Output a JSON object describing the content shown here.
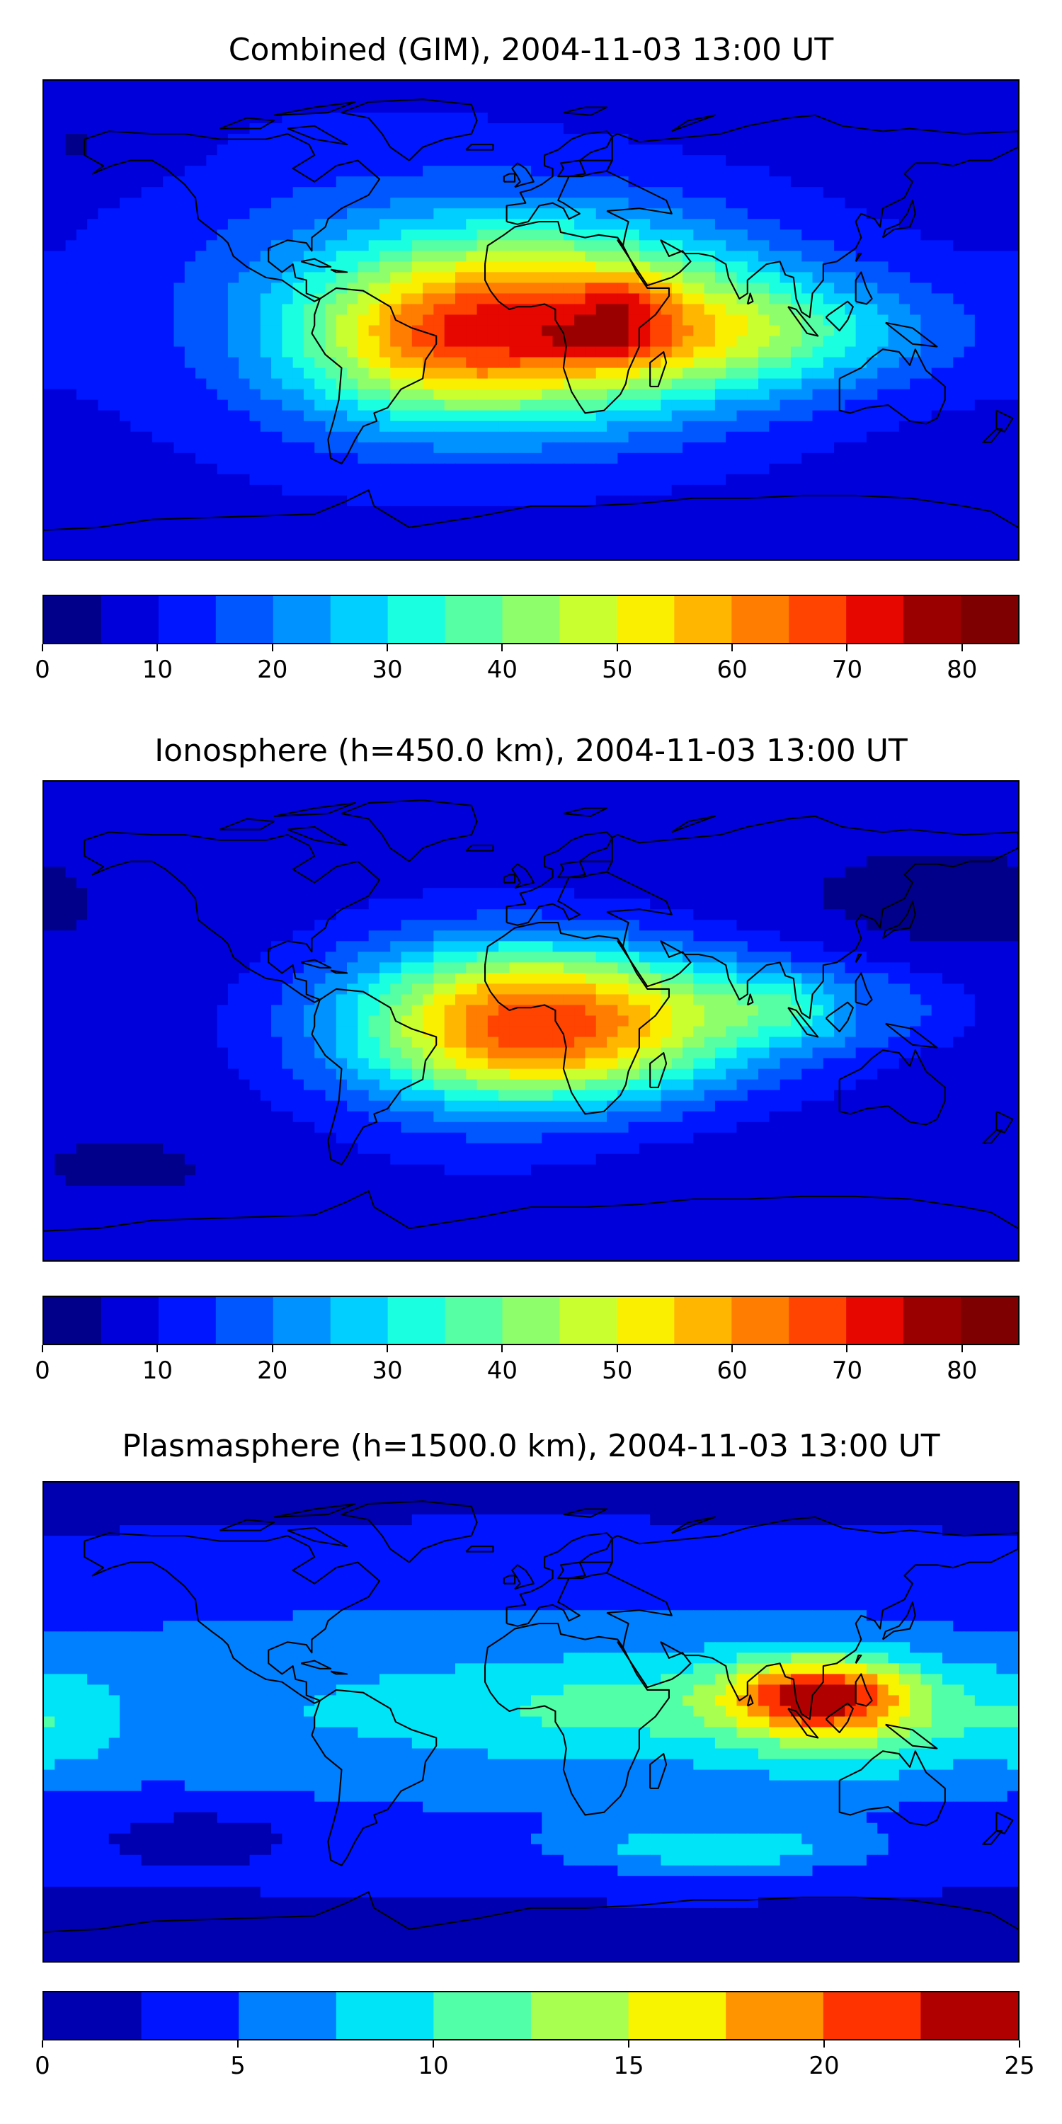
{
  "chart_data": [
    {
      "type": "heatmap",
      "title": "Combined (GIM), 2004-11-03 13:00 UT",
      "colorbar": {
        "ticks": [
          0,
          10,
          20,
          30,
          40,
          50,
          60,
          70,
          80
        ],
        "levels": [
          0,
          5,
          10,
          15,
          20,
          25,
          30,
          35,
          40,
          45,
          50,
          55,
          60,
          65,
          70,
          75,
          80,
          85
        ],
        "colors": [
          "#00008a",
          "#0000db",
          "#0016ff",
          "#0057ff",
          "#0093ff",
          "#00cfff",
          "#1affe0",
          "#56ffa4",
          "#8eff6b",
          "#c9ff2f",
          "#fbef00",
          "#ffb600",
          "#ff7d00",
          "#ff4300",
          "#e60700",
          "#9a0000",
          "#7f0000"
        ]
      },
      "field": {
        "background": 8,
        "blobs": [
          {
            "lon": 10,
            "lat": 0,
            "amp": 50,
            "slon": 55,
            "slat": 26
          },
          {
            "lon": 35,
            "lat": 8,
            "amp": 12,
            "slon": 12,
            "slat": 6
          },
          {
            "lon": 30,
            "lat": -8,
            "amp": 12,
            "slon": 16,
            "slat": 6
          },
          {
            "lon": 90,
            "lat": -5,
            "amp": 20,
            "slon": 45,
            "slat": 15
          },
          {
            "lon": -40,
            "lat": -10,
            "amp": 20,
            "slon": 35,
            "slat": 20
          },
          {
            "lon": -70,
            "lat": 10,
            "amp": 8,
            "slon": 60,
            "slat": 40
          },
          {
            "lon": -165,
            "lat": 65,
            "amp": -4,
            "slon": 25,
            "slat": 10
          }
        ]
      }
    },
    {
      "type": "heatmap",
      "title": "Ionosphere  (h=450.0 km), 2004-11-03 13:00 UT",
      "colorbar": {
        "ticks": [
          0,
          10,
          20,
          30,
          40,
          50,
          60,
          70,
          80
        ],
        "levels": [
          0,
          5,
          10,
          15,
          20,
          25,
          30,
          35,
          40,
          45,
          50,
          55,
          60,
          65,
          70,
          75,
          80,
          85
        ],
        "colors": [
          "#00008a",
          "#0000db",
          "#0016ff",
          "#0057ff",
          "#0093ff",
          "#00cfff",
          "#1affe0",
          "#56ffa4",
          "#8eff6b",
          "#c9ff2f",
          "#fbef00",
          "#ffb600",
          "#ff7d00",
          "#ff4300",
          "#e60700",
          "#9a0000",
          "#7f0000"
        ]
      },
      "field": {
        "background": 7,
        "blobs": [
          {
            "lon": 10,
            "lat": 10,
            "amp": 35,
            "slon": 50,
            "slat": 15
          },
          {
            "lon": 10,
            "lat": -12,
            "amp": 35,
            "slon": 50,
            "slat": 15
          },
          {
            "lon": -20,
            "lat": -5,
            "amp": 12,
            "slon": 40,
            "slat": 30
          },
          {
            "lon": 105,
            "lat": 5,
            "amp": 20,
            "slon": 30,
            "slat": 10
          },
          {
            "lon": 120,
            "lat": 5,
            "amp": -10,
            "slon": 12,
            "slat": 6
          },
          {
            "lon": 150,
            "lat": 45,
            "amp": -4,
            "slon": 40,
            "slat": 15
          },
          {
            "lon": -150,
            "lat": -55,
            "amp": -3,
            "slon": 30,
            "slat": 10
          }
        ]
      }
    },
    {
      "type": "heatmap",
      "title": "Plasmasphere (h=1500.0 km), 2004-11-03 13:00 UT",
      "colorbar": {
        "ticks": [
          0,
          5,
          10,
          15,
          20,
          25
        ],
        "levels": [
          0,
          2.5,
          5,
          7.5,
          10,
          12.5,
          15,
          17.5,
          20,
          22.5,
          25
        ],
        "colors": [
          "#0000b0",
          "#0014ff",
          "#0080ff",
          "#00e4f8",
          "#50ffa8",
          "#a8ff50",
          "#f8f400",
          "#ff9400",
          "#ff3300",
          "#b00000",
          "#7f0000"
        ]
      },
      "field": {
        "background": 2,
        "blobs": [
          {
            "lon": 0,
            "lat": 5,
            "amp": 6,
            "slon": 200,
            "slat": 32
          },
          {
            "lon": 105,
            "lat": 10,
            "amp": 14,
            "slon": 25,
            "slat": 10
          },
          {
            "lon": 120,
            "lat": 0,
            "amp": 5,
            "slon": 35,
            "slat": 15
          },
          {
            "lon": 25,
            "lat": 5,
            "amp": 3,
            "slon": 30,
            "slat": 10
          },
          {
            "lon": -175,
            "lat": 0,
            "amp": 3,
            "slon": 15,
            "slat": 15
          },
          {
            "lon": 70,
            "lat": -48,
            "amp": 6,
            "slon": 40,
            "slat": 7
          },
          {
            "lon": -120,
            "lat": -40,
            "amp": -2,
            "slon": 30,
            "slat": 8
          }
        ]
      }
    }
  ]
}
